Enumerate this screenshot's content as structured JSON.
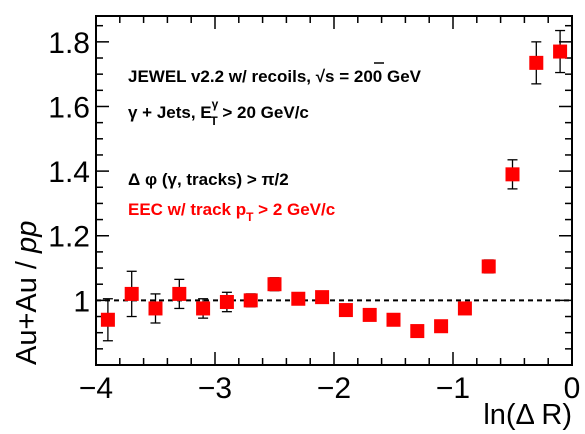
{
  "chart_data": {
    "type": "scatter",
    "xlabel": "ln(Δ R)",
    "ylabel_main": "Au+Au / ",
    "ylabel_italic": "pp",
    "xlim": [
      -4,
      0
    ],
    "ylim": [
      0.8,
      1.88
    ],
    "xticks": [
      -4,
      -3,
      -2,
      -1,
      0
    ],
    "xtick_labels": [
      "−4",
      "−3",
      "−2",
      "−1",
      "0"
    ],
    "yticks": [
      1.0,
      1.2,
      1.4,
      1.6,
      1.8
    ],
    "ytick_labels": [
      "1",
      "1.2",
      "1.4",
      "1.6",
      "1.8"
    ],
    "reference_line": 1.0,
    "annotations": {
      "line1_text": "JEWEL v2.2 w/ recoils, ",
      "line1_sqrt": "√s",
      "line1_end": " = 200 GeV",
      "line2_a": "γ + Jets, E",
      "line2_sup": "γ",
      "line2_sub": "T",
      "line2_b": " > 20 GeV/c",
      "line3": "Δ  φ (γ, tracks) > π/2",
      "line4_a": "EEC w/ track p",
      "line4_sub": "T",
      "line4_b": " > 2 GeV/c"
    },
    "series": [
      {
        "color": "#ff0000",
        "marker": "square",
        "points": [
          {
            "x": -3.9,
            "y": 0.94,
            "err": 0.065
          },
          {
            "x": -3.7,
            "y": 1.02,
            "err": 0.07
          },
          {
            "x": -3.5,
            "y": 0.975,
            "err": 0.045
          },
          {
            "x": -3.3,
            "y": 1.02,
            "err": 0.045
          },
          {
            "x": -3.1,
            "y": 0.975,
            "err": 0.03
          },
          {
            "x": -2.9,
            "y": 0.995,
            "err": 0.03
          },
          {
            "x": -2.7,
            "y": 1.0,
            "err": 0.02
          },
          {
            "x": -2.5,
            "y": 1.05,
            "err": 0.02
          },
          {
            "x": -2.3,
            "y": 1.005,
            "err": 0.012
          },
          {
            "x": -2.1,
            "y": 1.01,
            "err": 0.01
          },
          {
            "x": -1.9,
            "y": 0.97,
            "err": 0.008
          },
          {
            "x": -1.7,
            "y": 0.955,
            "err": 0.007
          },
          {
            "x": -1.5,
            "y": 0.94,
            "err": 0.006
          },
          {
            "x": -1.3,
            "y": 0.905,
            "err": 0.006
          },
          {
            "x": -1.1,
            "y": 0.92,
            "err": 0.006
          },
          {
            "x": -0.9,
            "y": 0.975,
            "err": 0.015
          },
          {
            "x": -0.7,
            "y": 1.105,
            "err": 0.02
          },
          {
            "x": -0.5,
            "y": 1.39,
            "err": 0.045
          },
          {
            "x": -0.3,
            "y": 1.735,
            "err": 0.065
          },
          {
            "x": -0.1,
            "y": 1.77,
            "err": 0.065
          }
        ]
      }
    ]
  }
}
